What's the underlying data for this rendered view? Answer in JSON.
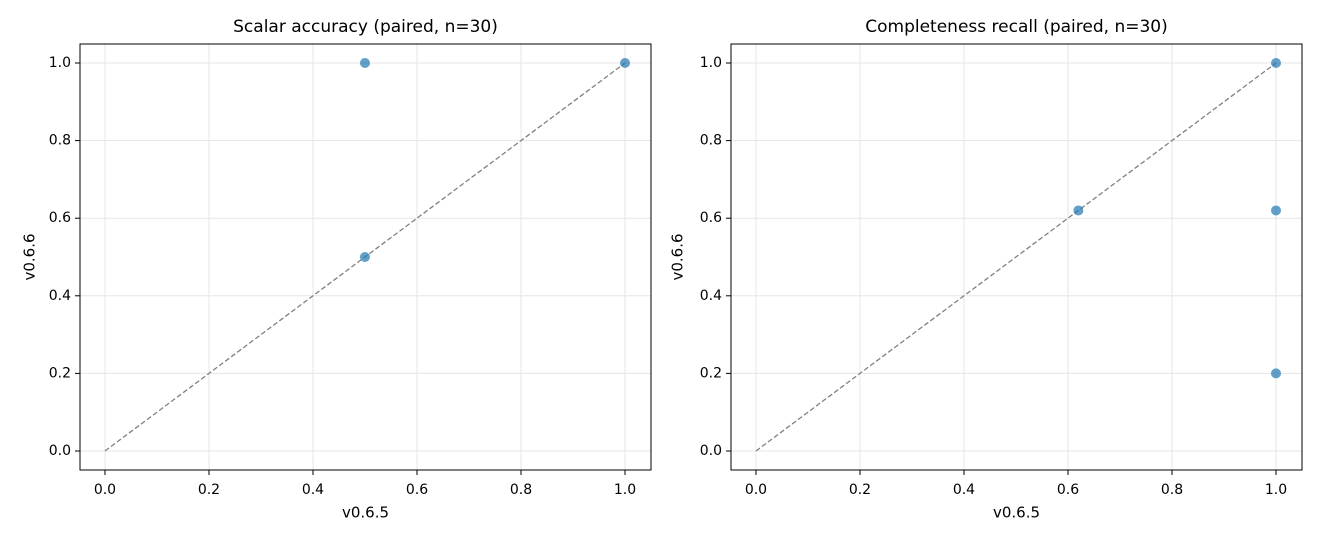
{
  "chart_data": [
    {
      "type": "scatter",
      "title": "Scalar accuracy (paired, n=30)",
      "xlabel": "v0.6.5",
      "ylabel": "v0.6.6",
      "xlim": [
        -0.048,
        1.05
      ],
      "ylim": [
        -0.049,
        1.049
      ],
      "xticks": [
        {
          "value": 0,
          "label": "0.0"
        },
        0.2,
        0.4,
        0.6,
        0.8,
        {
          "value": 1,
          "label": "1.0"
        }
      ],
      "yticks": [
        {
          "value": 0,
          "label": "0.0"
        },
        0.2,
        0.4,
        0.6,
        0.8,
        {
          "value": 1,
          "label": "1.0"
        }
      ],
      "grid": true,
      "series": [
        {
          "color": "#1f77b4",
          "x": [
            0.5,
            0.5,
            1.0
          ],
          "values": [
            1.0,
            0.5,
            1.0
          ]
        }
      ],
      "diagonal": {
        "color": "#808080",
        "x": [
          0,
          1
        ],
        "values": [
          0,
          1
        ]
      }
    },
    {
      "type": "scatter",
      "title": "Completeness recall (paired, n=30)",
      "xlabel": "v0.6.5",
      "ylabel": "v0.6.6",
      "xlim": [
        -0.048,
        1.05
      ],
      "ylim": [
        -0.049,
        1.049
      ],
      "xticks": [
        {
          "value": 0,
          "label": "0.0"
        },
        0.2,
        0.4,
        0.6,
        0.8,
        {
          "value": 1,
          "label": "1.0"
        }
      ],
      "yticks": [
        {
          "value": 0,
          "label": "0.0"
        },
        0.2,
        0.4,
        0.6,
        0.8,
        {
          "value": 1,
          "label": "1.0"
        }
      ],
      "grid": true,
      "series": [
        {
          "color": "#1f77b4",
          "x": [
            0.62,
            1.0,
            1.0,
            1.0
          ],
          "values": [
            0.62,
            1.0,
            0.62,
            0.2
          ]
        }
      ],
      "diagonal": {
        "color": "#808080",
        "x": [
          0,
          1
        ],
        "values": [
          0,
          1
        ]
      }
    }
  ]
}
